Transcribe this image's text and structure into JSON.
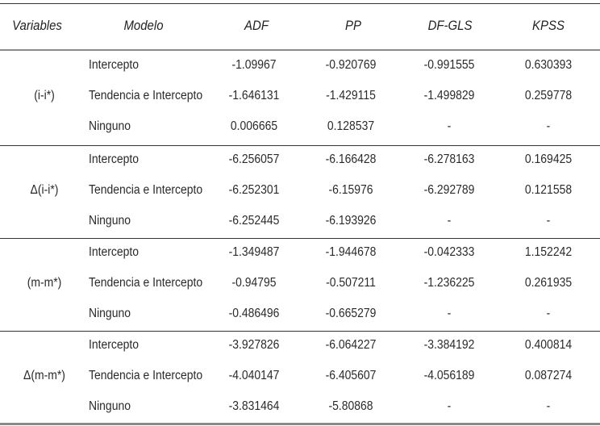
{
  "table": {
    "headers": [
      "Variables",
      "Modelo",
      "ADF",
      "PP",
      "DF-GLS",
      "KPSS"
    ],
    "groups": [
      {
        "variable": "(i-i*)",
        "rows": [
          {
            "modelo": "Intercepto",
            "adf": "-1.09967",
            "pp": "-0.920769",
            "dfgls": "-0.991555",
            "kpss": "0.630393"
          },
          {
            "modelo": "Tendencia e Intercepto",
            "adf": "-1.646131",
            "pp": "-1.429115",
            "dfgls": "-1.499829",
            "kpss": "0.259778"
          },
          {
            "modelo": "Ninguno",
            "adf": "0.006665",
            "pp": "0.128537",
            "dfgls": "-",
            "kpss": "-"
          }
        ]
      },
      {
        "variable": "Δ(i-i*)",
        "rows": [
          {
            "modelo": "Intercepto",
            "adf": "-6.256057",
            "pp": "-6.166428",
            "dfgls": "-6.278163",
            "kpss": "0.169425"
          },
          {
            "modelo": "Tendencia e Intercepto",
            "adf": "-6.252301",
            "pp": "-6.15976",
            "dfgls": "-6.292789",
            "kpss": "0.121558"
          },
          {
            "modelo": "Ninguno",
            "adf": "-6.252445",
            "pp": "-6.193926",
            "dfgls": "-",
            "kpss": "-"
          }
        ]
      },
      {
        "variable": "(m-m*)",
        "rows": [
          {
            "modelo": "Intercepto",
            "adf": "-1.349487",
            "pp": "-1.944678",
            "dfgls": "-0.042333",
            "kpss": "1.152242"
          },
          {
            "modelo": "Tendencia e Intercepto",
            "adf": "-0.94795",
            "pp": "-0.507211",
            "dfgls": "-1.236225",
            "kpss": "0.261935"
          },
          {
            "modelo": "Ninguno",
            "adf": "-0.486496",
            "pp": "-0.665279",
            "dfgls": "-",
            "kpss": "-"
          }
        ]
      },
      {
        "variable": "Δ(m-m*)",
        "rows": [
          {
            "modelo": "Intercepto",
            "adf": "-3.927826",
            "pp": "-6.064227",
            "dfgls": "-3.384192",
            "kpss": "0.400814"
          },
          {
            "modelo": "Tendencia e Intercepto",
            "adf": "-4.040147",
            "pp": "-6.405607",
            "dfgls": "-4.056189",
            "kpss": "0.087274"
          },
          {
            "modelo": "Ninguno",
            "adf": "-3.831464",
            "pp": "-5.80868",
            "dfgls": "-",
            "kpss": "-"
          }
        ]
      }
    ]
  }
}
